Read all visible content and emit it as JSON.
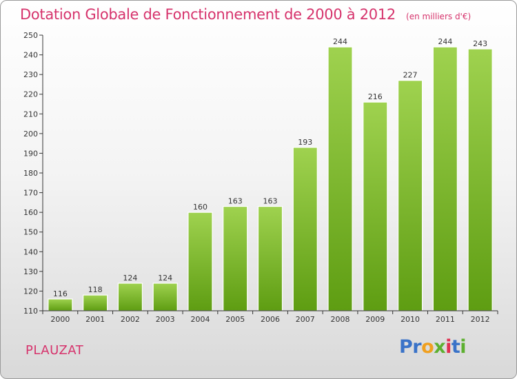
{
  "header": {
    "title": "Dotation Globale de Fonctionnement de 2000 à 2012",
    "unit": "(en milliers d'€)"
  },
  "commune": "PLAUZAT",
  "logo": {
    "text": "Proxiti",
    "letters": [
      "P",
      "r",
      "o",
      "x",
      "i",
      "t",
      "i"
    ]
  },
  "colors": {
    "accent": "#d6336c",
    "bar_top": "#9fd24f",
    "bar_bottom": "#5e9d12",
    "axis": "#333333"
  },
  "chart_data": {
    "type": "bar",
    "title": "Dotation Globale de Fonctionnement de 2000 à 2012",
    "subtitle": "(en milliers d'€)",
    "categories": [
      "2000",
      "2001",
      "2002",
      "2003",
      "2004",
      "2005",
      "2006",
      "2007",
      "2008",
      "2009",
      "2010",
      "2011",
      "2012"
    ],
    "values": [
      116,
      118,
      124,
      124,
      160,
      163,
      163,
      193,
      244,
      216,
      227,
      244,
      243
    ],
    "ylim": [
      110,
      250
    ],
    "yticks": [
      110,
      120,
      130,
      140,
      150,
      160,
      170,
      180,
      190,
      200,
      210,
      220,
      230,
      240,
      250
    ],
    "data_labels": true,
    "grid": false
  }
}
